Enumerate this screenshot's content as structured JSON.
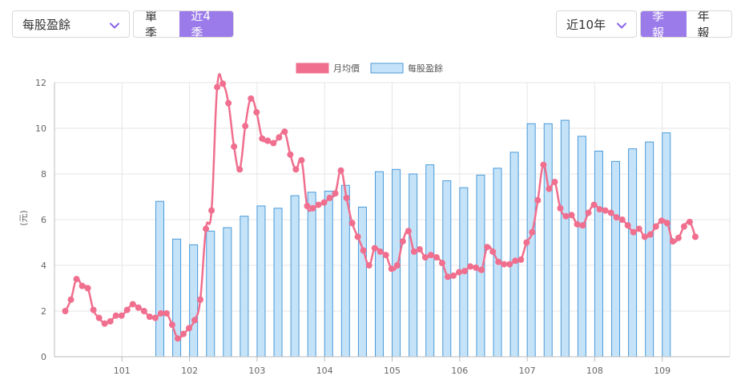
{
  "controls": {
    "metric_select": "每股盈餘",
    "period_buttons": [
      "單季",
      "近4季"
    ],
    "period_active": 1,
    "range_select": "近10年",
    "freq_buttons": [
      "季報",
      "年報"
    ],
    "freq_active": 0,
    "accent_color": "#9b7bea"
  },
  "chart_data": {
    "type": "bar+line",
    "ylabel": "(元)",
    "ylim": [
      0,
      12
    ],
    "yticks": [
      0,
      2,
      4,
      6,
      8,
      10,
      12
    ],
    "x_range": [
      100.0,
      110.0
    ],
    "xticks": [
      "101",
      "102",
      "103",
      "104",
      "105",
      "106",
      "107",
      "108",
      "109"
    ],
    "grid": true,
    "legend_position": "top-center",
    "series": [
      {
        "name": "月均價",
        "type": "line",
        "color": "#f06e8e",
        "x_start": 100.16,
        "x_step": 0.0833,
        "values": [
          2.0,
          2.5,
          3.4,
          3.1,
          3.0,
          2.05,
          1.7,
          1.45,
          1.55,
          1.8,
          1.8,
          2.05,
          2.3,
          2.15,
          2.0,
          1.75,
          1.7,
          1.9,
          1.9,
          1.4,
          0.8,
          1.0,
          1.25,
          1.6,
          2.5,
          5.6,
          6.4,
          11.8,
          11.95,
          11.1,
          9.2,
          8.2,
          10.1,
          11.3,
          10.7,
          9.55,
          9.45,
          9.35,
          9.6,
          9.85,
          8.85,
          8.2,
          8.6,
          6.6,
          6.5,
          6.65,
          6.75,
          6.95,
          7.15,
          8.15,
          6.95,
          5.85,
          5.25,
          4.65,
          4.0,
          4.75,
          4.6,
          4.45,
          3.85,
          4.0,
          5.05,
          5.5,
          4.6,
          4.7,
          4.35,
          4.45,
          4.35,
          4.1,
          3.5,
          3.55,
          3.7,
          3.75,
          3.95,
          3.9,
          3.8,
          4.8,
          4.6,
          4.15,
          4.05,
          4.05,
          4.2,
          4.25,
          5.0,
          5.45,
          6.85,
          8.4,
          7.35,
          7.65,
          6.5,
          6.15,
          6.2,
          5.8,
          5.75,
          6.3,
          6.65,
          6.45,
          6.4,
          6.3,
          6.1,
          6.0,
          5.75,
          5.45,
          5.6,
          5.25,
          5.35,
          5.7,
          5.95,
          5.85,
          5.05,
          5.2,
          5.7,
          5.9,
          5.25
        ]
      },
      {
        "name": "每股盈餘",
        "type": "bar",
        "fill": "#c5e3f8",
        "stroke": "#4b9ad8",
        "x": [
          101.56,
          101.81,
          102.06,
          102.31,
          102.56,
          102.81,
          103.06,
          103.31,
          103.56,
          103.81,
          104.06,
          104.31,
          104.56,
          104.81,
          105.06,
          105.31,
          105.56,
          105.81,
          106.06,
          106.31,
          106.56,
          106.81,
          107.06,
          107.31,
          107.56,
          107.81,
          108.06,
          108.31,
          108.56,
          108.81,
          109.06
        ],
        "values": [
          6.8,
          5.15,
          4.9,
          5.5,
          5.65,
          6.15,
          6.6,
          6.5,
          7.05,
          7.2,
          7.25,
          7.5,
          6.55,
          8.1,
          8.2,
          8.0,
          8.4,
          7.7,
          7.4,
          7.95,
          8.25,
          8.95,
          10.2,
          10.2,
          10.35,
          9.65,
          9.0,
          8.55,
          9.1,
          9.4,
          9.8
        ]
      }
    ]
  }
}
